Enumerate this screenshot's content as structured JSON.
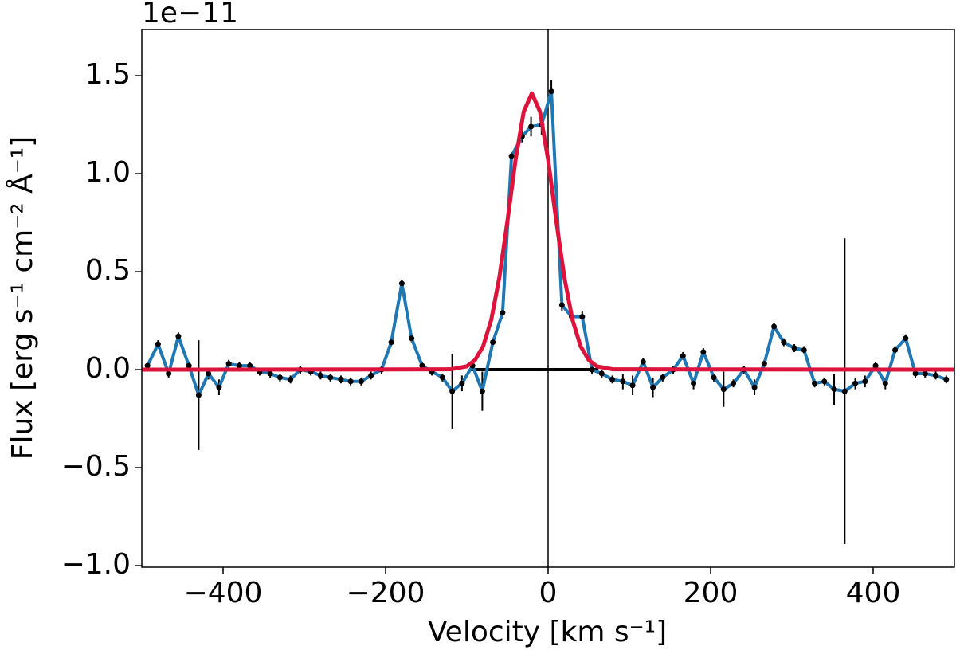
{
  "chart_data": {
    "type": "line",
    "xlabel": "Velocity [km s⁻¹]",
    "ylabel": "Flux [erg s⁻¹ cm⁻² Å⁻¹]",
    "offset_text": "1e−11",
    "xlim": [
      -500,
      500
    ],
    "ylim": [
      -1.008,
      1.736
    ],
    "xticks": [
      {
        "value": -400,
        "label": "−400"
      },
      {
        "value": -200,
        "label": "−200"
      },
      0,
      200,
      400
    ],
    "yticks": [
      {
        "value": -1.0,
        "label": "−1.0"
      },
      {
        "value": -0.5,
        "label": "−0.5"
      },
      {
        "value": 0.0,
        "label": "0.0"
      },
      0.5,
      {
        "value": 1.0,
        "label": "1.0"
      },
      1.5
    ],
    "grid": false,
    "vline": 0,
    "hline": {
      "y": 0,
      "xmin": -97,
      "xmax": 62
    },
    "series": [
      {
        "color": "#1f77b4",
        "point_color": "#000000",
        "x": [
          -493,
          -480,
          -467,
          -455,
          -442,
          -430,
          -418,
          -405,
          -393,
          -380,
          -367,
          -355,
          -342,
          -330,
          -317,
          -305,
          -292,
          -280,
          -268,
          -255,
          -243,
          -230,
          -218,
          -205,
          -193,
          -180,
          -168,
          -155,
          -143,
          -130,
          -118,
          -106,
          -93,
          -81,
          -68,
          -56,
          -45,
          -32,
          -21,
          -8,
          4,
          17,
          29,
          42,
          54,
          66,
          79,
          92,
          104,
          117,
          129,
          141,
          154,
          166,
          179,
          191,
          204,
          216,
          228,
          241,
          254,
          266,
          278,
          290,
          303,
          315,
          328,
          340,
          352,
          365,
          378,
          390,
          403,
          415,
          427,
          440,
          452,
          464,
          477,
          490
        ],
        "values": [
          0.02,
          0.13,
          -0.02,
          0.17,
          0.02,
          -0.13,
          -0.02,
          -0.09,
          0.03,
          0.02,
          0.02,
          -0.01,
          -0.02,
          -0.04,
          -0.05,
          0.0,
          -0.01,
          -0.03,
          -0.04,
          -0.05,
          -0.06,
          -0.06,
          -0.03,
          0.0,
          0.14,
          0.44,
          0.16,
          0.02,
          -0.01,
          -0.04,
          -0.11,
          -0.07,
          0.02,
          -0.11,
          0.14,
          0.29,
          1.09,
          1.19,
          1.24,
          1.25,
          1.42,
          0.33,
          0.27,
          0.27,
          0.0,
          -0.02,
          -0.05,
          -0.06,
          -0.08,
          0.04,
          -0.09,
          -0.04,
          0.0,
          0.07,
          -0.07,
          0.09,
          -0.04,
          -0.1,
          -0.07,
          0.0,
          -0.09,
          0.03,
          0.22,
          0.14,
          0.11,
          0.1,
          -0.07,
          -0.06,
          -0.1,
          -0.11,
          -0.07,
          -0.06,
          0.02,
          -0.07,
          0.1,
          0.16,
          -0.02,
          -0.02,
          -0.03,
          -0.05
        ],
        "errors": [
          0.02,
          0.02,
          0.02,
          0.02,
          0.02,
          0.28,
          0.03,
          0.04,
          0.02,
          0.02,
          0.02,
          0.02,
          0.02,
          0.02,
          0.02,
          0.02,
          0.02,
          0.02,
          0.02,
          0.02,
          0.02,
          0.02,
          0.02,
          0.02,
          0.02,
          0.02,
          0.02,
          0.02,
          0.02,
          0.02,
          0.19,
          0.04,
          0.02,
          0.1,
          0.02,
          0.03,
          0.02,
          0.03,
          0.05,
          0.05,
          0.06,
          0.03,
          0.02,
          0.03,
          0.02,
          0.02,
          0.02,
          0.04,
          0.05,
          0.02,
          0.05,
          0.02,
          0.02,
          0.02,
          0.03,
          0.02,
          0.02,
          0.09,
          0.02,
          0.02,
          0.04,
          0.02,
          0.02,
          0.02,
          0.02,
          0.02,
          0.02,
          0.02,
          0.08,
          0.78,
          0.03,
          0.03,
          0.02,
          0.03,
          0.02,
          0.02,
          0.02,
          0.02,
          0.02,
          0.02
        ]
      },
      {
        "color": "#dc143c",
        "x": [
          -500,
          -120,
          -100,
          -90,
          -80,
          -70,
          -60,
          -50,
          -40,
          -30,
          -20,
          -10,
          0,
          10,
          20,
          30,
          40,
          50,
          60,
          80,
          500
        ],
        "values": [
          0,
          0.0015,
          0.017,
          0.049,
          0.119,
          0.254,
          0.471,
          0.76,
          1.072,
          1.317,
          1.41,
          1.317,
          1.072,
          0.76,
          0.471,
          0.254,
          0.119,
          0.049,
          0.017,
          0.0015,
          0
        ]
      }
    ]
  }
}
